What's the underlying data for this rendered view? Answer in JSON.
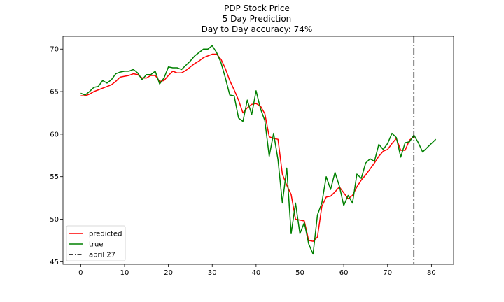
{
  "chart_data": {
    "type": "line",
    "title_lines": [
      "PDP Stock Price",
      "5 Day Prediction",
      "Day to Day accuracy: 74%"
    ],
    "xlabel": "",
    "ylabel": "",
    "xlim": [
      -4.05,
      85.05
    ],
    "ylim": [
      44.7,
      71.5
    ],
    "xticks": [
      0,
      10,
      20,
      30,
      40,
      50,
      60,
      70,
      80
    ],
    "yticks": [
      45,
      50,
      55,
      60,
      65,
      70
    ],
    "grid": false,
    "legend_position": "lower-left",
    "series": [
      {
        "name": "predicted",
        "color": "#ff0000",
        "x": [
          0,
          1,
          2,
          3,
          4,
          5,
          6,
          7,
          8,
          9,
          10,
          11,
          12,
          13,
          14,
          15,
          16,
          17,
          18,
          19,
          20,
          21,
          22,
          23,
          24,
          25,
          26,
          27,
          28,
          29,
          30,
          31,
          32,
          33,
          34,
          35,
          36,
          37,
          38,
          39,
          40,
          41,
          42,
          43,
          44,
          45,
          46,
          47,
          48,
          49,
          50,
          51,
          52,
          53,
          54,
          55,
          56,
          57,
          58,
          59,
          60,
          61,
          62,
          63,
          64,
          65,
          66,
          67,
          68,
          69,
          70,
          71,
          72,
          73,
          74,
          75,
          76
        ],
        "y": [
          64.5,
          64.5,
          64.7,
          65.0,
          65.2,
          65.4,
          65.6,
          65.8,
          66.2,
          66.7,
          66.8,
          66.9,
          67.1,
          67.0,
          66.6,
          66.6,
          66.9,
          66.9,
          66.2,
          66.3,
          66.9,
          67.4,
          67.2,
          67.2,
          67.5,
          67.9,
          68.3,
          68.6,
          69.0,
          69.2,
          69.4,
          69.4,
          68.8,
          67.7,
          66.3,
          65.2,
          64.0,
          62.5,
          63.1,
          63.5,
          63.6,
          63.3,
          62.4,
          59.7,
          59.5,
          59.4,
          55.3,
          54.0,
          52.9,
          50.0,
          49.9,
          49.8,
          47.5,
          47.4,
          47.9,
          51.5,
          52.6,
          52.7,
          53.2,
          53.8,
          53.1,
          52.4,
          52.8,
          53.8,
          54.6,
          55.2,
          55.9,
          56.6,
          57.4,
          58.0,
          58.2,
          58.9,
          59.5,
          58.1,
          58.1,
          59.3,
          59.7
        ]
      },
      {
        "name": "true",
        "color": "#008000",
        "x": [
          0,
          1,
          2,
          3,
          4,
          5,
          6,
          7,
          8,
          9,
          10,
          11,
          12,
          13,
          14,
          15,
          16,
          17,
          18,
          19,
          20,
          21,
          22,
          23,
          24,
          25,
          26,
          27,
          28,
          29,
          30,
          31,
          32,
          33,
          34,
          35,
          36,
          37,
          38,
          39,
          40,
          41,
          42,
          43,
          44,
          45,
          46,
          47,
          48,
          49,
          50,
          51,
          52,
          53,
          54,
          55,
          56,
          57,
          58,
          59,
          60,
          61,
          62,
          63,
          64,
          65,
          66,
          67,
          68,
          69,
          70,
          71,
          72,
          73,
          74,
          75,
          76,
          77,
          78,
          79,
          80,
          81
        ],
        "y": [
          64.8,
          64.6,
          65.0,
          65.5,
          65.6,
          66.3,
          66.0,
          66.4,
          67.1,
          67.3,
          67.4,
          67.4,
          67.6,
          67.2,
          66.4,
          67.0,
          67.0,
          67.4,
          65.9,
          66.6,
          67.9,
          67.8,
          67.8,
          67.6,
          68.1,
          68.6,
          69.2,
          69.6,
          70.0,
          70.0,
          70.4,
          69.6,
          68.4,
          66.6,
          64.6,
          64.5,
          61.9,
          61.5,
          64.0,
          62.3,
          65.1,
          63.0,
          61.6,
          57.4,
          60.1,
          57.0,
          51.9,
          56.0,
          48.3,
          51.9,
          48.3,
          49.6,
          47.1,
          45.9,
          50.5,
          51.9,
          55.0,
          53.5,
          55.5,
          53.9,
          51.6,
          52.8,
          51.9,
          55.3,
          54.8,
          56.6,
          57.1,
          56.8,
          58.8,
          58.2,
          58.9,
          60.1,
          59.6,
          57.3,
          59.0,
          59.1,
          59.9,
          59.0,
          57.9,
          58.4,
          58.9,
          59.4
        ]
      }
    ],
    "vline": {
      "label": "april 27",
      "x": 76,
      "color": "#000000",
      "style": "dashdot"
    }
  }
}
